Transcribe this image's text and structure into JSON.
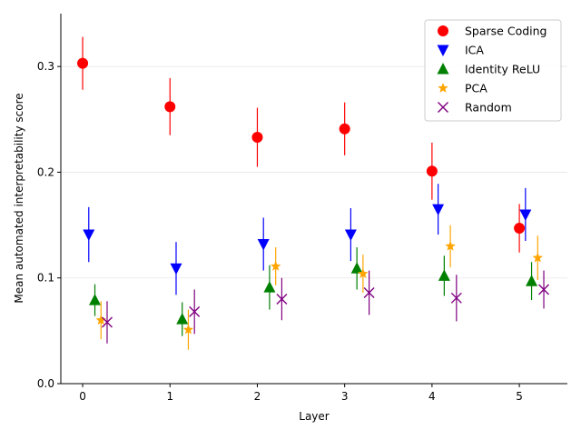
{
  "chart_data": {
    "type": "scatter",
    "title": "",
    "xlabel": "Layer",
    "ylabel": "Mean automated interpretability score",
    "xlim": [
      -0.25,
      5.55
    ],
    "ylim": [
      0.0,
      0.35
    ],
    "x_ticks": [
      0,
      1,
      2,
      3,
      4,
      5
    ],
    "x_tick_labels": [
      "0",
      "1",
      "2",
      "3",
      "4",
      "5"
    ],
    "y_ticks": [
      0.0,
      0.1,
      0.2,
      0.3
    ],
    "y_tick_labels": [
      "0.0",
      "0.1",
      "0.2",
      "0.3"
    ],
    "grid": "horizontal",
    "legend_position": "top-right",
    "x": [
      0,
      1,
      2,
      3,
      4,
      5
    ],
    "series": [
      {
        "name": "Sparse Coding",
        "marker": "circle",
        "color": "#ff0000",
        "offset": 0.0,
        "values": [
          0.303,
          0.262,
          0.233,
          0.241,
          0.201,
          0.147
        ],
        "err": [
          0.025,
          0.027,
          0.028,
          0.025,
          0.027,
          0.023
        ]
      },
      {
        "name": "ICA",
        "marker": "triangle-down",
        "color": "#0000ff",
        "offset": 0.07,
        "values": [
          0.141,
          0.109,
          0.132,
          0.141,
          0.165,
          0.16
        ],
        "err": [
          0.026,
          0.025,
          0.025,
          0.025,
          0.024,
          0.025
        ]
      },
      {
        "name": "Identity ReLU",
        "marker": "triangle-up",
        "color": "#008000",
        "offset": 0.14,
        "values": [
          0.079,
          0.061,
          0.091,
          0.109,
          0.102,
          0.097
        ],
        "err": [
          0.015,
          0.016,
          0.021,
          0.02,
          0.019,
          0.018
        ]
      },
      {
        "name": "PCA",
        "marker": "star",
        "color": "#ffa500",
        "offset": 0.21,
        "values": [
          0.06,
          0.051,
          0.111,
          0.104,
          0.13,
          0.119
        ],
        "err": [
          0.018,
          0.019,
          0.018,
          0.018,
          0.02,
          0.021
        ]
      },
      {
        "name": "Random",
        "marker": "x",
        "color": "#800080",
        "offset": 0.28,
        "values": [
          0.058,
          0.068,
          0.08,
          0.086,
          0.081,
          0.089
        ],
        "err": [
          0.02,
          0.021,
          0.02,
          0.021,
          0.022,
          0.018
        ]
      }
    ]
  }
}
